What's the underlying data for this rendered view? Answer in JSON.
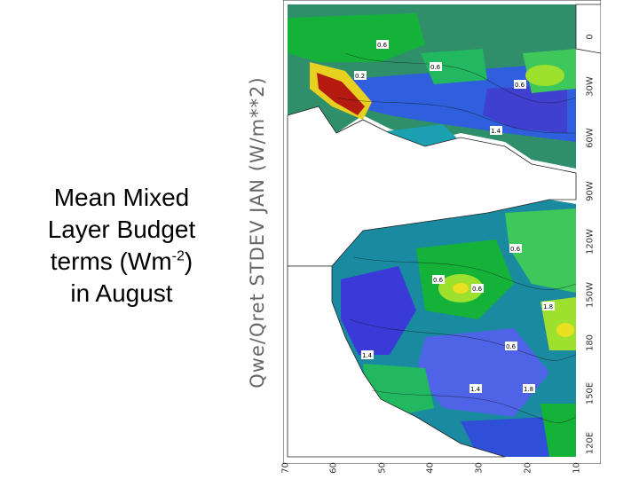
{
  "caption": {
    "line1": "Mean Mixed",
    "line2": "Layer Budget",
    "line3_pre": "terms (Wm",
    "line3_sup": "-2",
    "line3_post": ")",
    "line4": "in August"
  },
  "map_title": "Qwe/Qret STDEV JAN (W/m**2)",
  "lon_ticks": [
    "0",
    "30W",
    "60W",
    "90W",
    "120W",
    "150W",
    "180",
    "150E",
    "120E"
  ],
  "lat_ticks": [
    "70",
    "60",
    "50",
    "40",
    "30",
    "20",
    "10"
  ],
  "contour_labels": [
    "0.2",
    "0.6",
    "0.6",
    "0.6",
    "1.4",
    "0.6",
    "0.6",
    "0.6",
    "1.8",
    "1.4",
    "0.6",
    "1.4",
    "1.8"
  ],
  "colors": {
    "blue_low": "#3a3ad8",
    "blue_mid": "#4f63e6",
    "teal": "#1a8aa0",
    "green": "#15b23a",
    "lightgreen": "#9de02e",
    "yellow": "#e8e020",
    "red": "#b41a10"
  }
}
